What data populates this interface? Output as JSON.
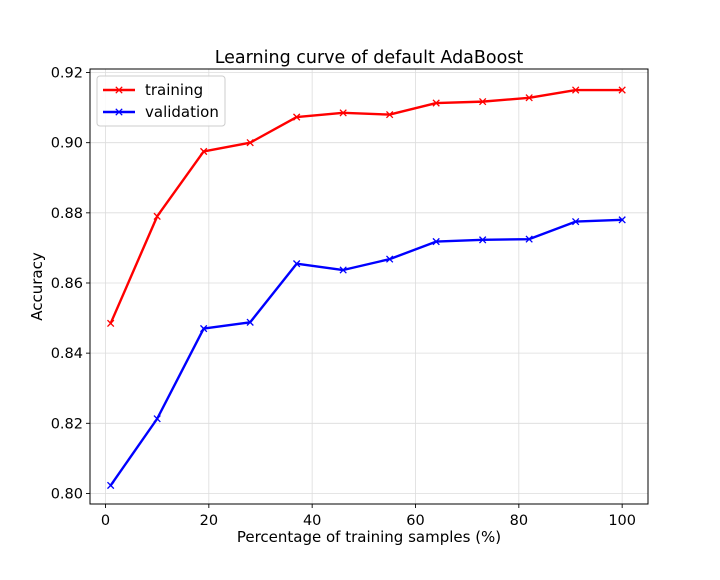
{
  "chart_data": {
    "type": "line",
    "title": "Learning curve of default AdaBoost",
    "xlabel": "Percentage of training samples (%)",
    "ylabel": "Accuracy",
    "xlim": [
      -3,
      105
    ],
    "ylim": [
      0.797,
      0.921
    ],
    "xticks": [
      0,
      20,
      40,
      60,
      80,
      100
    ],
    "yticks": [
      0.8,
      0.82,
      0.84,
      0.86,
      0.88,
      0.9,
      0.92
    ],
    "xtick_labels": [
      "0",
      "20",
      "40",
      "60",
      "80",
      "100"
    ],
    "ytick_labels": [
      "0.80",
      "0.82",
      "0.84",
      "0.86",
      "0.88",
      "0.90",
      "0.92"
    ],
    "grid": true,
    "legend_position": "top-left",
    "x": [
      1,
      10,
      19,
      28,
      37,
      46,
      55,
      64,
      73,
      82,
      91,
      100
    ],
    "series": [
      {
        "name": "training",
        "color": "#ff0000",
        "marker": "x",
        "values": [
          0.8485,
          0.879,
          0.8975,
          0.9,
          0.9073,
          0.9085,
          0.908,
          0.9113,
          0.9117,
          0.9128,
          0.915,
          0.915
        ]
      },
      {
        "name": "validation",
        "color": "#0000ff",
        "marker": "x",
        "values": [
          0.8023,
          0.8213,
          0.847,
          0.8488,
          0.8655,
          0.8637,
          0.8668,
          0.8718,
          0.8723,
          0.8725,
          0.8775,
          0.878
        ]
      }
    ]
  }
}
